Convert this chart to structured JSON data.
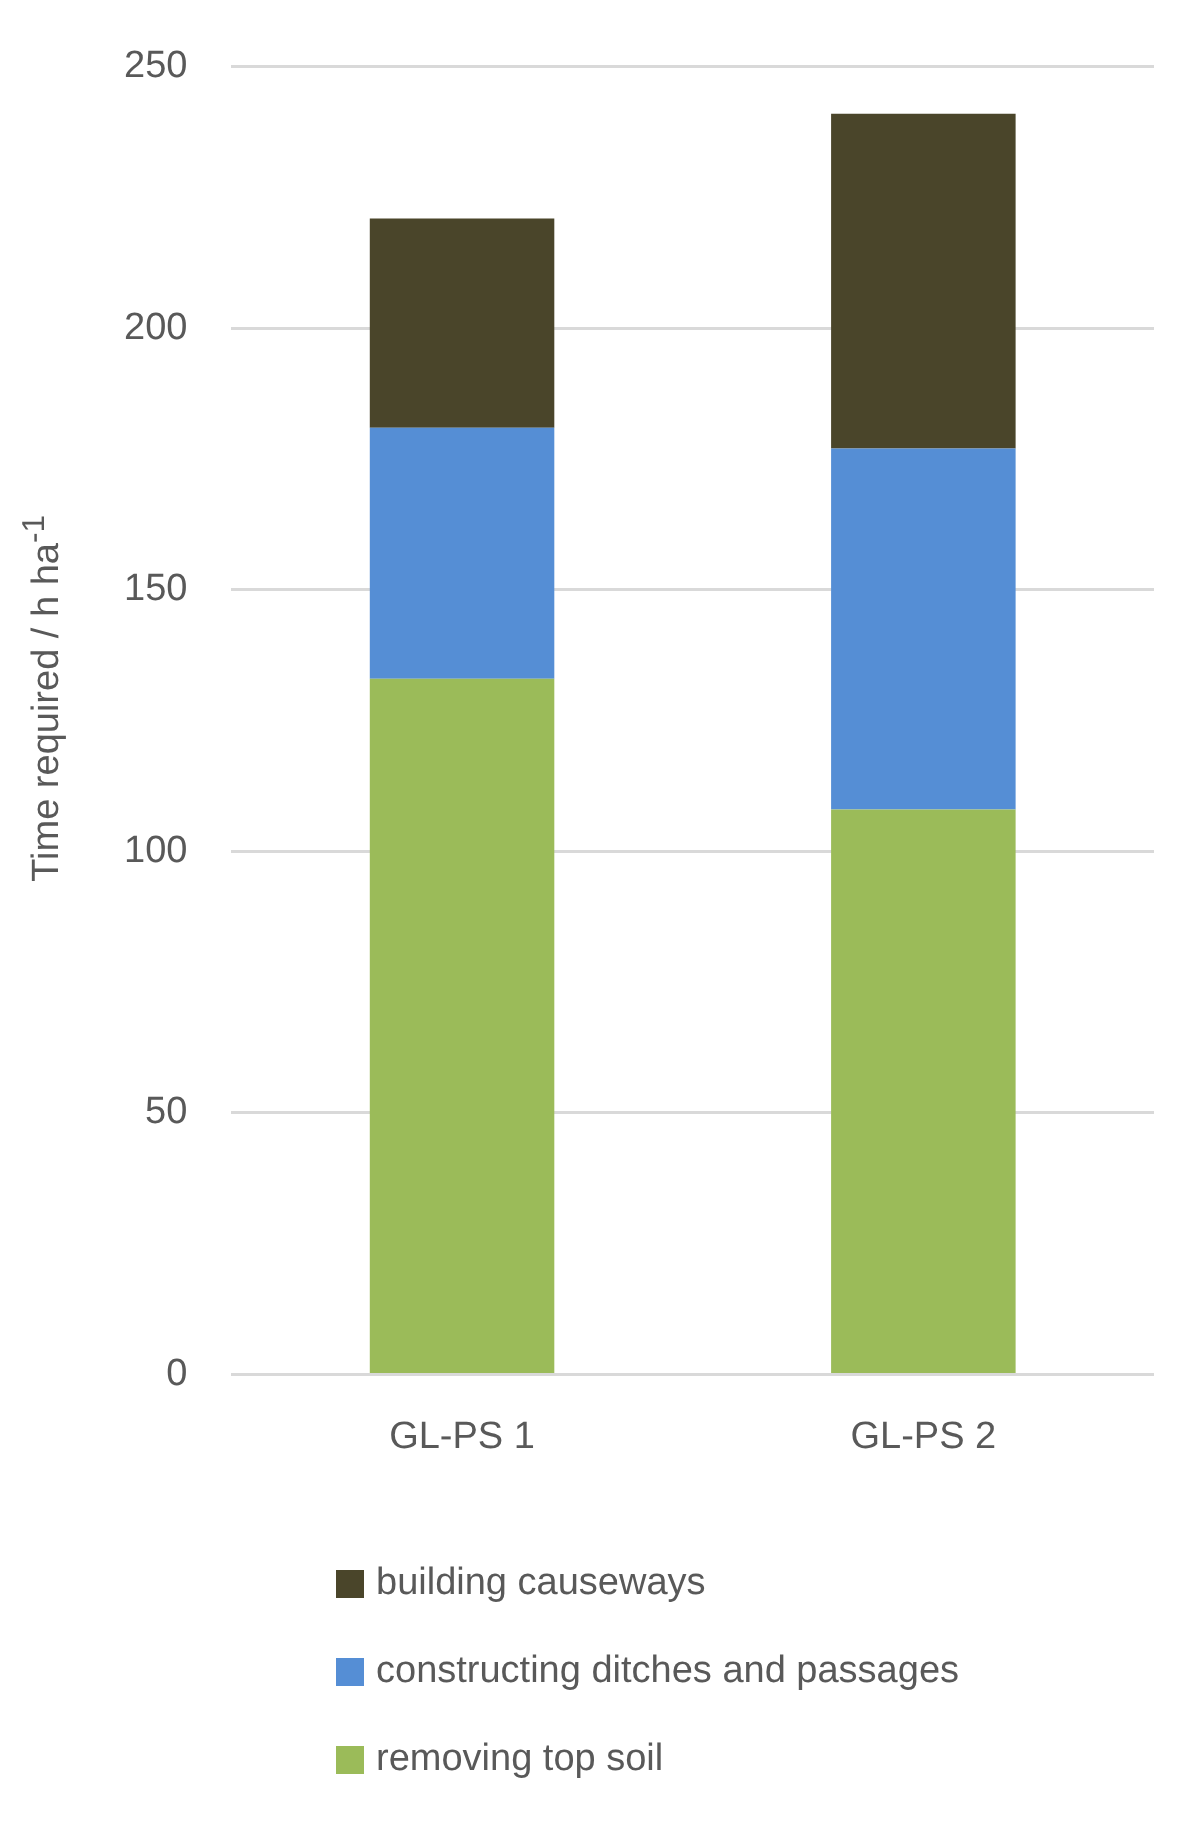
{
  "chart_data": {
    "type": "bar",
    "stacked": true,
    "ylabel": "Time required / h ha$^{-1}$",
    "categories": [
      "GL-PS 1",
      "GL-PS 2"
    ],
    "series": [
      {
        "name": "removing top soil",
        "color": "#9bbb59",
        "values": [
          133,
          108
        ]
      },
      {
        "name": "constructing ditches and passages",
        "color": "#558ed5",
        "values": [
          48,
          69
        ]
      },
      {
        "name": "building causeways",
        "color": "#4a452a",
        "values": [
          40,
          64
        ]
      }
    ],
    "ylim": [
      0,
      250
    ],
    "yticks": [
      0,
      50,
      100,
      150,
      200,
      250
    ],
    "grid": "y",
    "legend": "bottom"
  }
}
